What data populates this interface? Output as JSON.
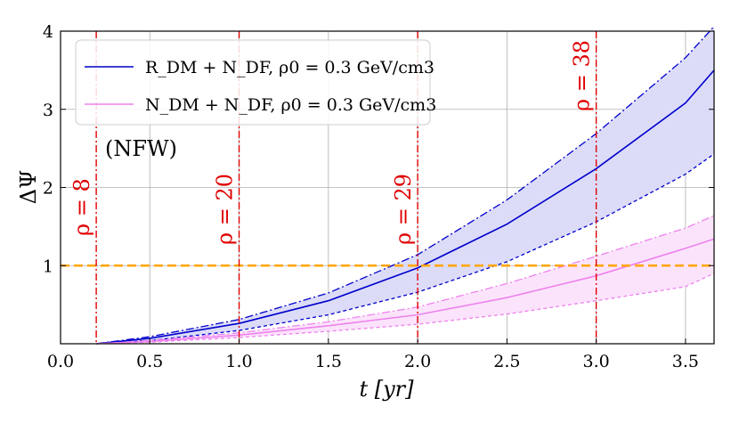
{
  "chart_data": {
    "type": "line",
    "xlabel": "t [yr]",
    "ylabel": "ΔΨ",
    "xlim": [
      0.0,
      3.66
    ],
    "ylim": [
      0.0,
      4.0
    ],
    "xticks": [
      "0.0",
      "0.5",
      "1.0",
      "1.5",
      "2.0",
      "2.5",
      "3.0",
      "3.5"
    ],
    "xtick_values": [
      0.0,
      0.5,
      1.0,
      1.5,
      2.0,
      2.5,
      3.0,
      3.5
    ],
    "yticks": [
      "1",
      "2",
      "3",
      "4"
    ],
    "ytick_values": [
      1,
      2,
      3,
      4
    ],
    "grid": true,
    "legend_position": "top-left",
    "annotation": "(NFW)",
    "threshold": {
      "y": 1.0,
      "color": "#ffa500",
      "style": "dashed"
    },
    "vlines": [
      {
        "x": 0.2,
        "label": "ρ = 8"
      },
      {
        "x": 1.0,
        "label": "ρ = 20"
      },
      {
        "x": 2.0,
        "label": "ρ = 29"
      },
      {
        "x": 3.0,
        "label": "ρ = 38"
      }
    ],
    "x": [
      0.2,
      0.5,
      1.0,
      1.5,
      2.0,
      2.5,
      3.0,
      3.5,
      3.66
    ],
    "series": [
      {
        "name": "R_DM + N_DF, ρ0 = 0.3 GeV/cm3",
        "color": "#0000cc",
        "fill": "#dcdcf8",
        "central": [
          0.0,
          0.07,
          0.26,
          0.55,
          0.97,
          1.53,
          2.24,
          3.08,
          3.5
        ],
        "upper": [
          0.0,
          0.09,
          0.31,
          0.65,
          1.14,
          1.84,
          2.69,
          3.66,
          4.06
        ],
        "lower": [
          0.0,
          0.04,
          0.17,
          0.37,
          0.66,
          1.05,
          1.56,
          2.17,
          2.43
        ]
      },
      {
        "name": "N_DM + N_DF, ρ0 = 0.3 GeV/cm3",
        "color": "#ee82ee",
        "fill": "#fbe4fb",
        "central": [
          0.0,
          0.03,
          0.11,
          0.23,
          0.37,
          0.59,
          0.87,
          1.22,
          1.34
        ],
        "upper": [
          0.0,
          0.04,
          0.14,
          0.28,
          0.47,
          0.77,
          1.12,
          1.48,
          1.64
        ],
        "lower": [
          0.0,
          0.02,
          0.08,
          0.16,
          0.25,
          0.38,
          0.55,
          0.73,
          0.9
        ]
      }
    ]
  }
}
